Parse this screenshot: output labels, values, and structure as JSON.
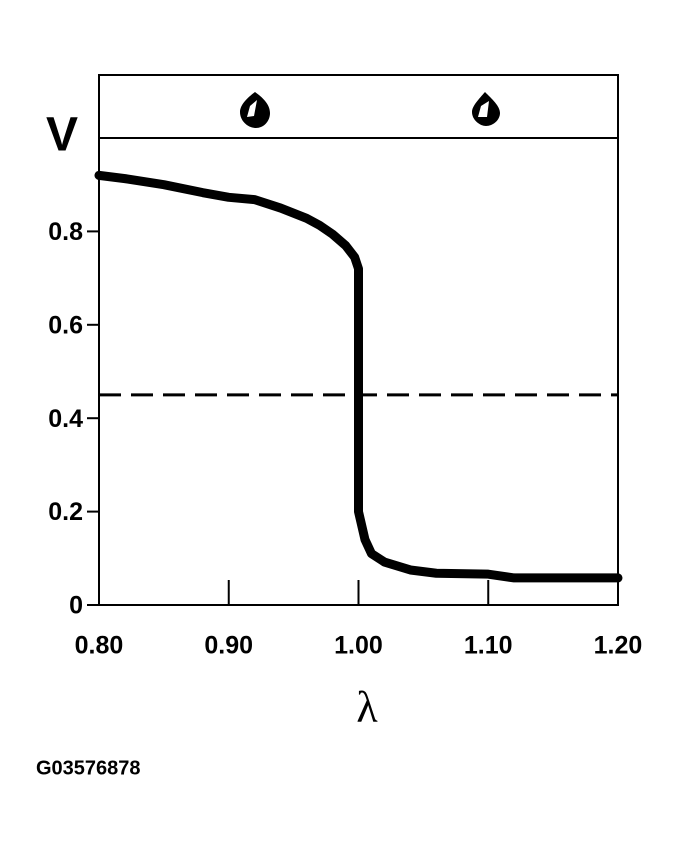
{
  "chart_data": {
    "type": "line",
    "y_label": "V",
    "x_label": "λ",
    "note": "G03576878",
    "x": [
      0.8,
      0.82,
      0.85,
      0.88,
      0.9,
      0.92,
      0.94,
      0.96,
      0.97,
      0.98,
      0.99,
      0.997,
      1.0,
      1.0,
      1.005,
      1.01,
      1.02,
      1.04,
      1.06,
      1.1,
      1.12,
      1.2
    ],
    "series": [
      {
        "color": "#000000",
        "values": [
          0.92,
          0.913,
          0.9,
          0.883,
          0.873,
          0.868,
          0.85,
          0.828,
          0.813,
          0.794,
          0.77,
          0.745,
          0.72,
          0.2,
          0.14,
          0.11,
          0.092,
          0.075,
          0.068,
          0.066,
          0.058,
          0.058
        ]
      }
    ],
    "threshold": 0.45,
    "xlim": [
      0.8,
      1.2
    ],
    "ylim": [
      0,
      1.0
    ],
    "xticks": [
      {
        "value": 0.8,
        "label": "0.80"
      },
      {
        "value": 0.9,
        "label": "0.90"
      },
      {
        "value": 1.0,
        "label": "1.00"
      },
      {
        "value": 1.1,
        "label": "1.10"
      },
      {
        "value": 1.2,
        "label": "1.20"
      }
    ],
    "yticks": [
      0,
      0.2,
      0.4,
      0.6,
      0.8
    ]
  }
}
